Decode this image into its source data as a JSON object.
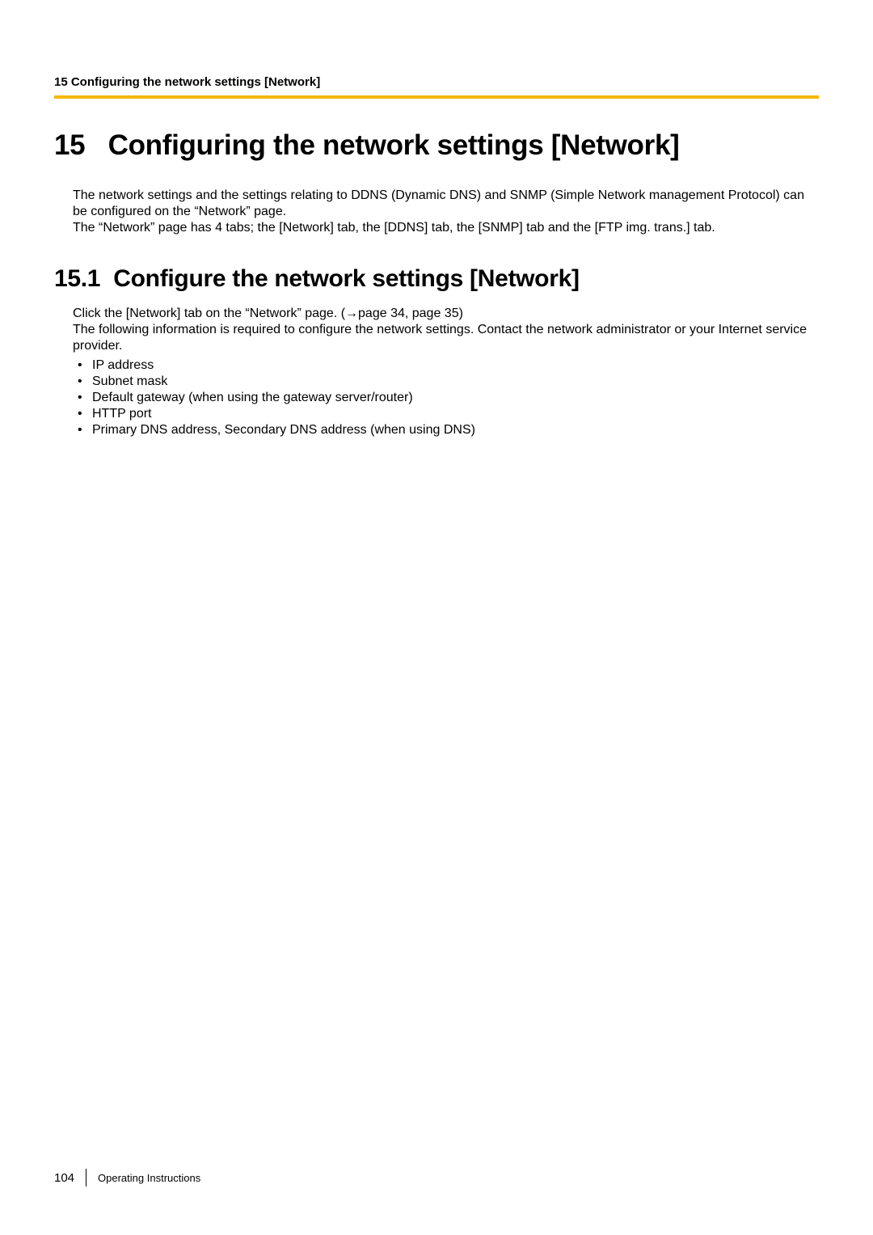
{
  "header": {
    "running_title": "15 Configuring the network settings [Network]"
  },
  "chapter": {
    "number": "15",
    "title": "Configuring the network settings [Network]"
  },
  "intro": {
    "line1": "The network settings and the settings relating to DDNS (Dynamic DNS) and SNMP (Simple Network management Protocol) can be configured on the “Network” page.",
    "line2": "The “Network” page has 4 tabs; the [Network] tab, the [DDNS] tab, the [SNMP] tab and the [FTP img. trans.] tab."
  },
  "section": {
    "number": "15.1",
    "title": "Configure the network settings [Network]",
    "text_prefix": "Click the [Network] tab on the “Network” page. (",
    "arrow": "→",
    "text_suffix": "page 34, page 35)",
    "line2": "The following information is required to configure the network settings. Contact the network administrator or your Internet service provider."
  },
  "bullets": {
    "items": [
      "IP address",
      "Subnet mask",
      "Default gateway (when using the gateway server/router)",
      "HTTP port",
      "Primary DNS address, Secondary DNS address (when using DNS)"
    ]
  },
  "footer": {
    "page_number": "104",
    "label": "Operating Instructions"
  },
  "colors": {
    "rule_color": "#f5b800",
    "text_color": "#000000",
    "background": "#ffffff"
  }
}
